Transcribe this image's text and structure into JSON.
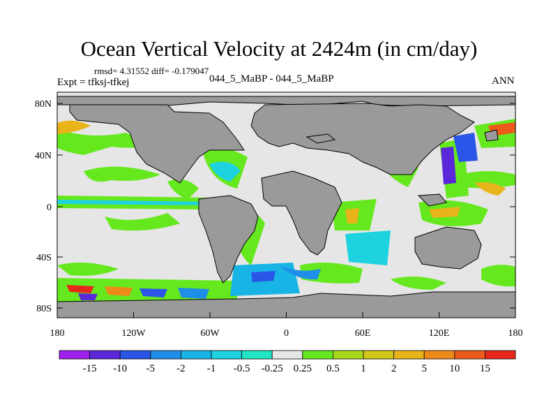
{
  "title": "Ocean Vertical Velocity at 2424m (in cm/day)",
  "stats": "rmsd= 4.31552 diff= -0.179047",
  "experiment": "Expt = tfksj-tfkej",
  "cases": "044_5_MaBP - 044_5_MaBP",
  "season": "ANN",
  "lat_labels": [
    "80N",
    "40N",
    "0",
    "40S",
    "80S"
  ],
  "lon_labels": [
    "180",
    "120W",
    "60W",
    "0",
    "60E",
    "120E",
    "180"
  ],
  "colorbar": {
    "labels": [
      "-15",
      "-10",
      "-5",
      "-2",
      "-1",
      "-0.5",
      "-0.25",
      "0.25",
      "0.5",
      "1",
      "2",
      "5",
      "10",
      "15"
    ],
    "colors": [
      "#a020f0",
      "#5a28d8",
      "#2a55e6",
      "#1e8ee8",
      "#18b4e6",
      "#1ed2e0",
      "#20e4c4",
      "#e6e6e6",
      "#66e81e",
      "#a8d81c",
      "#d2c81c",
      "#e8b41a",
      "#ee8a1a",
      "#ee5a1a",
      "#e6281a"
    ]
  },
  "colors": {
    "land": "#9a9a9a",
    "neutral": "#e6e6e6"
  }
}
